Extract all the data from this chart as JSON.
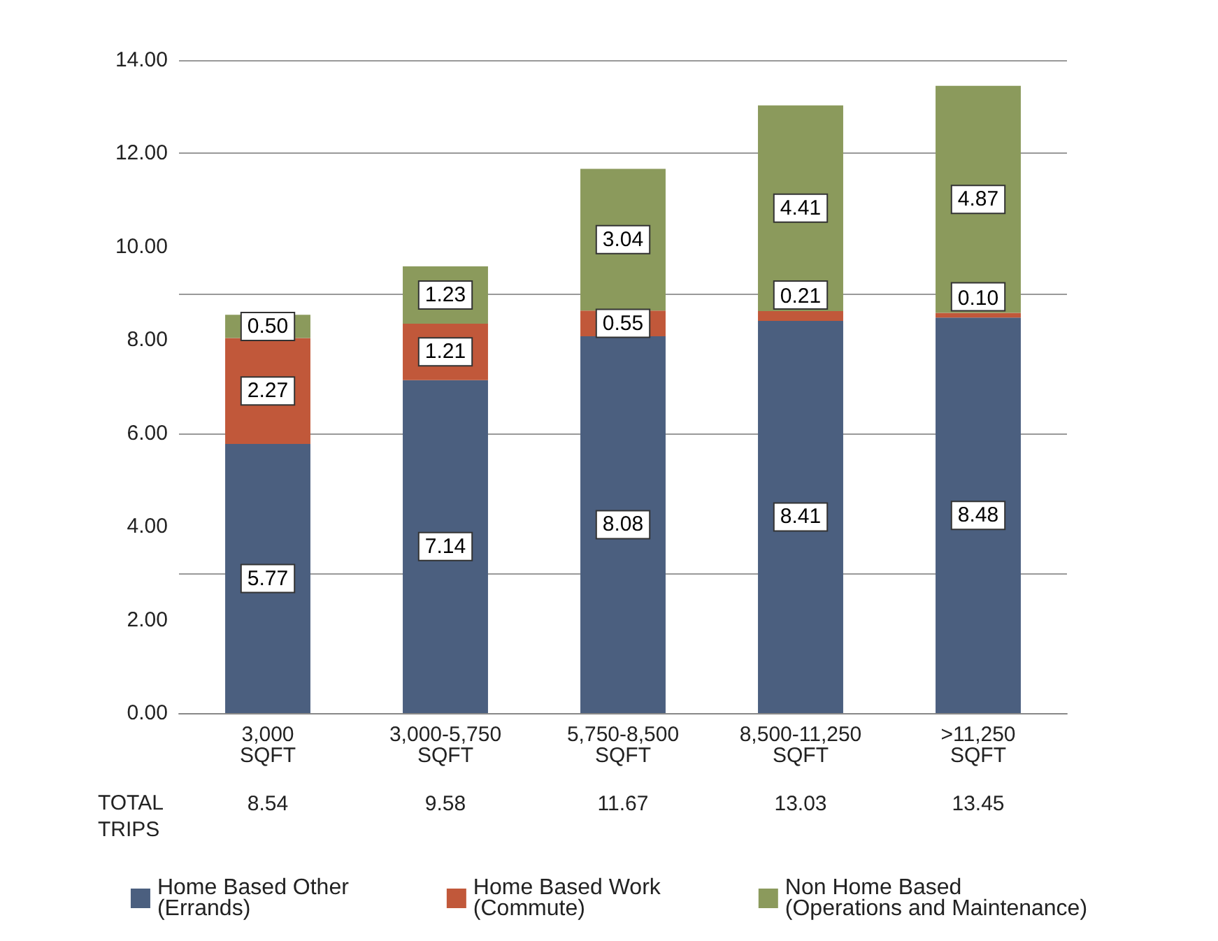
{
  "chart_data": {
    "type": "bar",
    "stacked": true,
    "categories": [
      "3,000\nSQFT",
      "3,000-5,750\nSQFT",
      "5,750-8,500\nSQFT",
      "8,500-11,250\nSQFT",
      ">11,250\nSQFT"
    ],
    "series": [
      {
        "name": "Home Based Other\n(Errands)",
        "color": "#4b5f7f",
        "values": [
          5.77,
          7.14,
          8.08,
          8.41,
          8.48
        ],
        "value_labels": [
          "5.77",
          "7.14",
          "8.08",
          "8.41",
          "8.48"
        ]
      },
      {
        "name": "Home Based Work\n(Commute)",
        "color": "#c1583a",
        "values": [
          2.27,
          1.21,
          0.55,
          0.21,
          0.1
        ],
        "value_labels": [
          "2.27",
          "1.21",
          "0.55",
          "0.21",
          "0.10"
        ]
      },
      {
        "name": "Non Home Based\n(Operations and Maintenance)",
        "color": "#8b9a5c",
        "values": [
          0.5,
          1.23,
          3.04,
          4.41,
          4.87
        ],
        "value_labels": [
          "0.50",
          "1.23",
          "3.04",
          "4.41",
          "4.87"
        ]
      }
    ],
    "annotations": [
      "TOTAL\nTRIPS",
      "8.54",
      "9.58",
      "11.67",
      "13.03",
      "13.45"
    ],
    "ylim": [
      0,
      14
    ],
    "yticks": [
      {
        "value": 0,
        "label": "0.00"
      },
      {
        "value": 2,
        "label": "2.00"
      },
      {
        "value": 4,
        "label": "4.00"
      },
      {
        "value": 6,
        "label": "6.00"
      },
      {
        "value": 8,
        "label": "8.00"
      },
      {
        "value": 10,
        "label": "10.00"
      },
      {
        "value": 12,
        "label": "12.00"
      },
      {
        "value": 14,
        "label": "14.00"
      }
    ],
    "grid": "y",
    "legend": "bottom"
  }
}
